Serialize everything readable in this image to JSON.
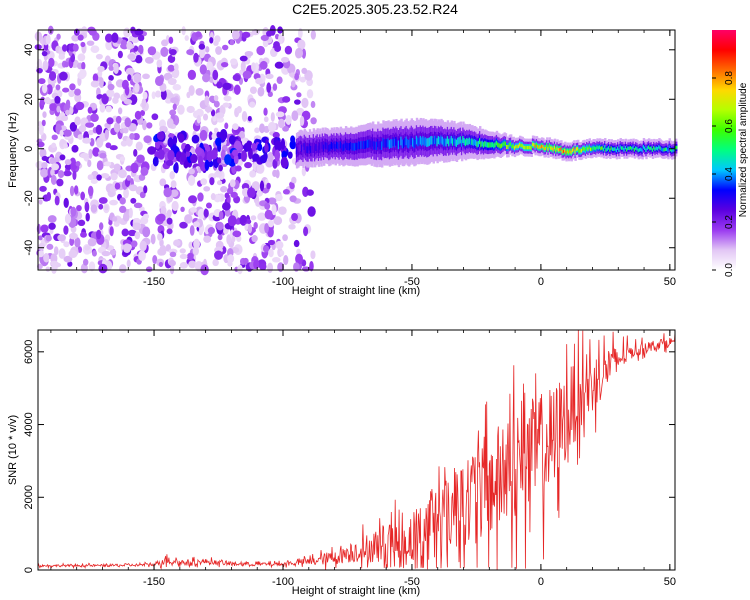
{
  "figure": {
    "title": "C2E5.2025.305.23.52.R24"
  },
  "chart_data": [
    {
      "type": "heatmap",
      "xlabel": "Height of straight line (km)",
      "ylabel": "Frequency (Hz)",
      "xlim": [
        -195,
        52
      ],
      "ylim": [
        -49,
        48
      ],
      "xticks": [
        -150,
        -100,
        -50,
        0,
        50
      ],
      "yticks": [
        -40,
        -20,
        0,
        20,
        40
      ],
      "colorbar": {
        "label": "Normalized spectral amplitude",
        "range": [
          0,
          1
        ],
        "ticks": [
          0.0,
          0.2,
          0.4,
          0.6,
          0.8
        ],
        "tick_labels": [
          "0.0",
          "0.2",
          "0.4",
          "0.6",
          "0.8"
        ],
        "colormap": [
          "#ffffff",
          "#e2c6f5",
          "#9a3af0",
          "#5a00e0",
          "#0000ff",
          "#00c8ff",
          "#00ff80",
          "#3cff00",
          "#b4ff00",
          "#ffd800",
          "#ff6a00",
          "#ff0000",
          "#ff0066"
        ]
      },
      "regions": [
        {
          "name": "scattered noise",
          "x_range": [
            -195,
            -88
          ],
          "y_range": [
            -49,
            48
          ],
          "amplitude": 0.1
        },
        {
          "name": "signal onset",
          "x_range": [
            -150,
            -92
          ],
          "y_center": -3,
          "amplitude": 0.3
        },
        {
          "name": "signal band",
          "x_range": [
            -95,
            52
          ],
          "y_center": 1,
          "amplitude_peak": 0.95
        }
      ],
      "signal_band": {
        "x": [
          -95,
          -80,
          -60,
          -45,
          -30,
          -20,
          -10,
          0,
          10,
          20,
          30,
          40,
          52
        ],
        "center_hz": [
          0,
          1,
          2,
          3,
          3,
          2,
          1,
          1,
          -1,
          0,
          0,
          0,
          0
        ],
        "half_width_hz": [
          4,
          4,
          5,
          5,
          4,
          3,
          2,
          2,
          2,
          2,
          2,
          2,
          2
        ],
        "peak_amplitude": [
          0.3,
          0.35,
          0.4,
          0.45,
          0.5,
          0.6,
          0.75,
          0.85,
          0.9,
          0.7,
          0.55,
          0.55,
          0.55
        ]
      }
    },
    {
      "type": "line",
      "xlabel": "Height of straight line (km)",
      "ylabel": "SNR (10 * v/v)",
      "xlim": [
        -195,
        52
      ],
      "ylim": [
        0,
        6600
      ],
      "xticks": [
        -150,
        -100,
        -50,
        0,
        50
      ],
      "yticks": [
        0,
        2000,
        4000,
        6000
      ],
      "color": "#e62626",
      "series": [
        {
          "name": "SNR",
          "x": [
            -195,
            -180,
            -160,
            -150,
            -145,
            -140,
            -130,
            -120,
            -110,
            -100,
            -95,
            -90,
            -85,
            -80,
            -75,
            -70,
            -65,
            -60,
            -55,
            -50,
            -45,
            -40,
            -35,
            -30,
            -25,
            -20,
            -15,
            -10,
            -5,
            0,
            5,
            10,
            15,
            20,
            25,
            30,
            35,
            40,
            45,
            52
          ],
          "base": [
            120,
            120,
            130,
            150,
            300,
            200,
            230,
            170,
            160,
            160,
            200,
            230,
            290,
            350,
            450,
            550,
            650,
            700,
            700,
            900,
            1100,
            1400,
            1600,
            1900,
            2100,
            2300,
            2500,
            2750,
            3000,
            3300,
            3600,
            4300,
            4800,
            5100,
            5500,
            5800,
            6000,
            6100,
            6200,
            6300
          ],
          "spread": [
            60,
            60,
            70,
            80,
            300,
            150,
            150,
            100,
            100,
            100,
            150,
            200,
            300,
            400,
            500,
            700,
            900,
            1100,
            1300,
            1500,
            1800,
            2100,
            2300,
            2600,
            2800,
            3000,
            3200,
            3300,
            3300,
            3200,
            3000,
            2500,
            2000,
            1700,
            1200,
            800,
            400,
            300,
            300,
            250
          ]
        }
      ]
    }
  ]
}
